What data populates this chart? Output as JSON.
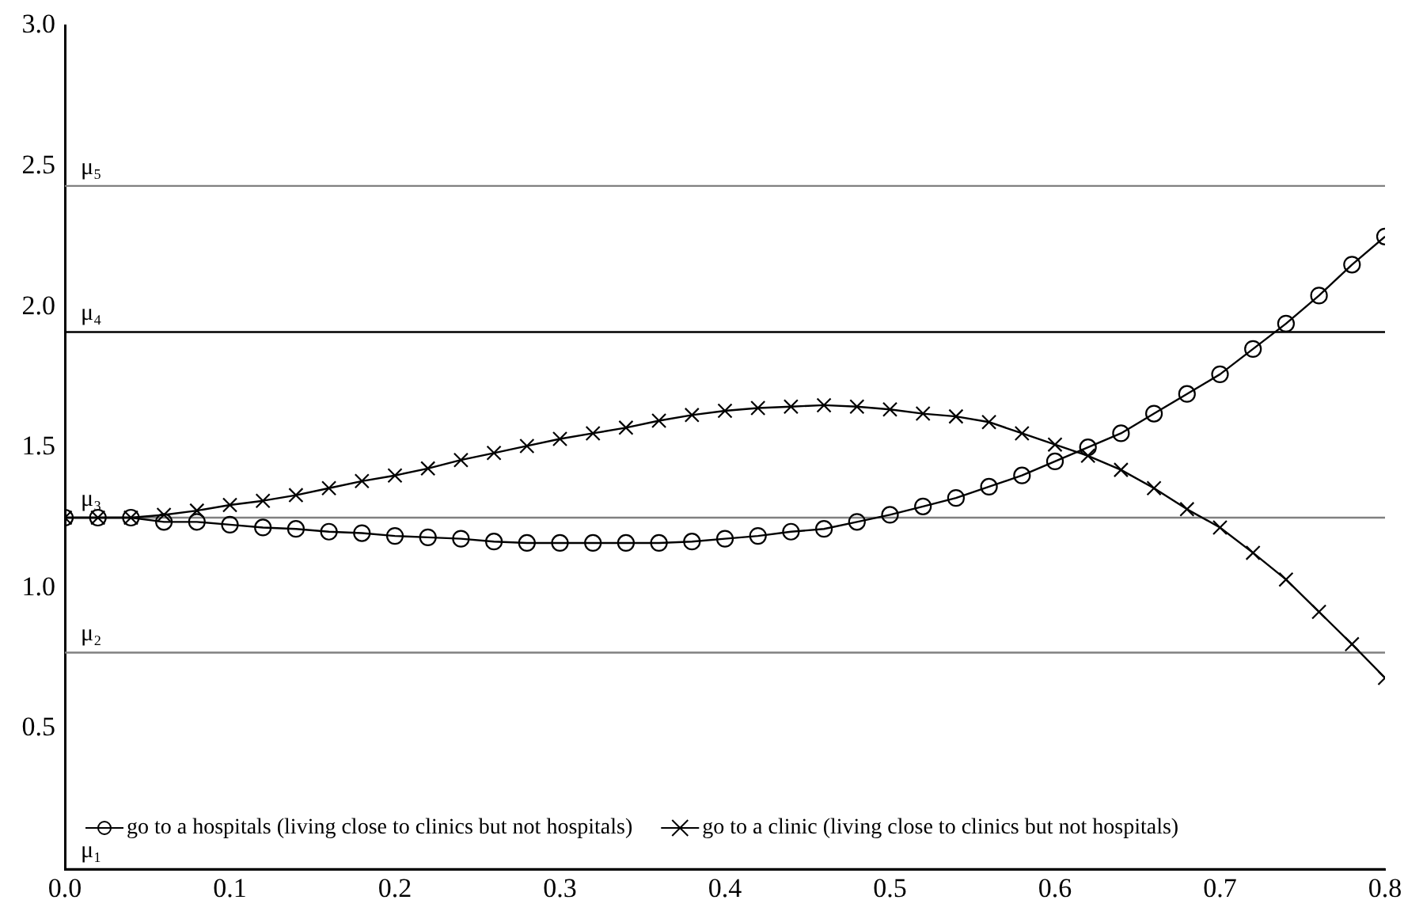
{
  "chart_data": {
    "type": "line",
    "x": [
      0,
      0.02,
      0.04,
      0.06,
      0.08,
      0.1,
      0.12,
      0.14,
      0.16,
      0.18,
      0.2,
      0.22,
      0.24,
      0.26,
      0.28,
      0.3,
      0.32,
      0.34,
      0.36,
      0.38,
      0.4,
      0.42,
      0.44,
      0.46,
      0.48,
      0.5,
      0.52,
      0.54,
      0.56,
      0.58,
      0.6,
      0.62,
      0.64,
      0.66,
      0.68,
      0.7,
      0.72,
      0.74,
      0.76,
      0.78,
      0.8
    ],
    "series": [
      {
        "name": "go to a hospitals (living close to clinics but not hospitals)",
        "color": "#000000",
        "marker": "circle",
        "values": [
          1.25,
          1.25,
          1.25,
          1.235,
          1.235,
          1.225,
          1.215,
          1.21,
          1.2,
          1.195,
          1.185,
          1.18,
          1.175,
          1.165,
          1.16,
          1.16,
          1.16,
          1.16,
          1.16,
          1.165,
          1.175,
          1.185,
          1.2,
          1.21,
          1.235,
          1.26,
          1.29,
          1.32,
          1.36,
          1.4,
          1.45,
          1.5,
          1.55,
          1.62,
          1.69,
          1.76,
          1.85,
          1.94,
          2.04,
          2.15,
          2.25
        ]
      },
      {
        "name": "go to a clinic (living close to clinics but not hospitals)",
        "color": "#000000",
        "marker": "cross",
        "values": [
          1.25,
          1.25,
          1.25,
          1.26,
          1.275,
          1.295,
          1.31,
          1.33,
          1.355,
          1.38,
          1.4,
          1.425,
          1.455,
          1.48,
          1.505,
          1.53,
          1.55,
          1.57,
          1.595,
          1.615,
          1.63,
          1.64,
          1.645,
          1.65,
          1.645,
          1.635,
          1.62,
          1.61,
          1.59,
          1.55,
          1.51,
          1.47,
          1.42,
          1.355,
          1.28,
          1.215,
          1.125,
          1.03,
          0.915,
          0.8,
          0.68
        ]
      }
    ],
    "xlim": [
      0,
      0.8
    ],
    "xticks": [
      {
        "value": 0,
        "label": "0.0"
      },
      0.1,
      0.2,
      0.3,
      0.4,
      0.5,
      0.6,
      0.7,
      0.8
    ],
    "ylim": [
      0,
      3
    ],
    "yticks": [
      0.5,
      {
        "value": 1,
        "label": "1.0"
      },
      1.5,
      {
        "value": 2,
        "label": "2.0"
      },
      2.5,
      {
        "value": 3,
        "label": "3.0"
      }
    ],
    "ref_lines": [
      {
        "axis": "y",
        "value": 0,
        "label": "μ₁",
        "color": "#000000"
      },
      {
        "axis": "y",
        "value": 0.77,
        "label": "μ₂",
        "color": "#808080"
      },
      {
        "axis": "y",
        "value": 1.25,
        "label": "μ₃",
        "color": "#808080"
      },
      {
        "axis": "y",
        "value": 1.91,
        "label": "μ₄",
        "color": "#000000"
      },
      {
        "axis": "y",
        "value": 2.43,
        "label": "μ₅",
        "color": "#808080"
      }
    ],
    "grid": false,
    "legend": "bottom left",
    "line_style": "solid"
  }
}
